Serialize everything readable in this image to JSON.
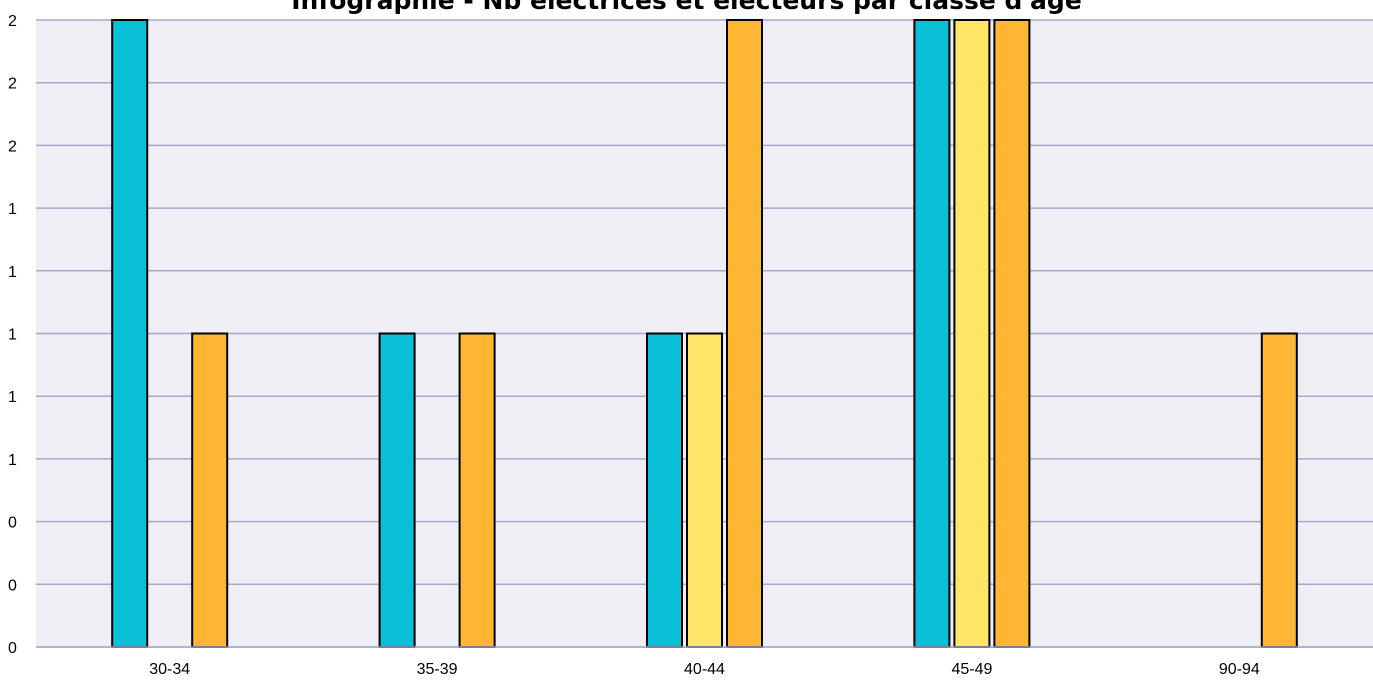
{
  "chart_data": {
    "type": "bar",
    "title": "Infographie - Nb électrices et électeurs par classe d'âge",
    "xlabel": "",
    "ylabel": "",
    "categories": [
      "30-34",
      "35-39",
      "40-44",
      "45-49",
      "90-94"
    ],
    "series": [
      {
        "color": "#0abfd6",
        "values": [
          2,
          1,
          1,
          2,
          0
        ]
      },
      {
        "color": "#ffe566",
        "values": [
          0,
          0,
          1,
          2,
          0
        ]
      },
      {
        "color": "#ffb733",
        "values": [
          1,
          1,
          2,
          2,
          1
        ]
      }
    ],
    "ylim": [
      0,
      2
    ],
    "yticks": [
      0,
      0.2,
      0.4,
      0.6,
      0.8,
      1.0,
      1.2,
      1.4,
      1.6,
      1.8,
      2.0
    ],
    "ytick_labels": [
      "0",
      "0",
      "0",
      "1",
      "1",
      "1",
      "1",
      "1",
      "2",
      "2",
      "2"
    ],
    "grid": true,
    "legend": "none",
    "colors": {
      "plot_background": "#efeef5",
      "gridline": "#a8a8cc",
      "bar_outline": "#000000"
    }
  }
}
